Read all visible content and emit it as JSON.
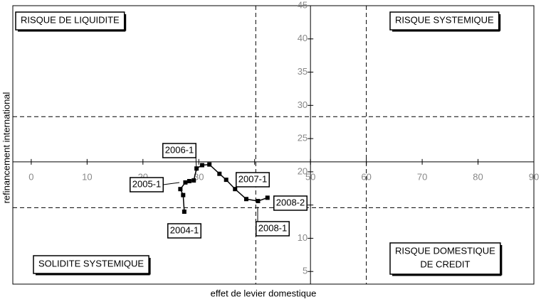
{
  "chart_data": {
    "type": "line",
    "x_label": "effet de levier domestique",
    "y_label": "refinancement international",
    "xlim": [
      -3.3,
      90
    ],
    "ylim": [
      3.1,
      45
    ],
    "xticks": [
      0,
      10,
      20,
      30,
      40,
      50,
      60,
      70,
      80,
      90
    ],
    "yticks": [
      5,
      10,
      15,
      20,
      25,
      30,
      35,
      40,
      45
    ],
    "x_axis_at": 21.5,
    "y_axis_at": 50,
    "hlines": [
      28.3,
      14.6
    ],
    "vlines": [
      40.2,
      60
    ],
    "series": [
      {
        "color": "#000000",
        "x": [
          27.4,
          27.2,
          26.7,
          27.6,
          28.3,
          29.1,
          29.6,
          30.6,
          31.9,
          33.7,
          34.9,
          36.5,
          38.5,
          40.6,
          42.3
        ],
        "values": [
          14.0,
          16.5,
          17.4,
          18.4,
          18.6,
          18.7,
          20.5,
          21.0,
          21.1,
          19.7,
          18.8,
          17.4,
          15.9,
          15.6,
          16.1
        ]
      }
    ],
    "annotations": [
      "2004-1",
      "2005-1",
      "2006-1",
      "2007-1",
      "2008-2",
      "2008-1"
    ],
    "quadrant_labels": [
      [
        "RISQUE DE LIQUIDITE"
      ],
      [
        "RISQUE SYSTEMIQUE"
      ],
      [
        "SOLIDITE SYSTEMIQUE"
      ],
      [
        "RISQUE DOMESTIQUE",
        "DE CREDIT"
      ]
    ]
  }
}
